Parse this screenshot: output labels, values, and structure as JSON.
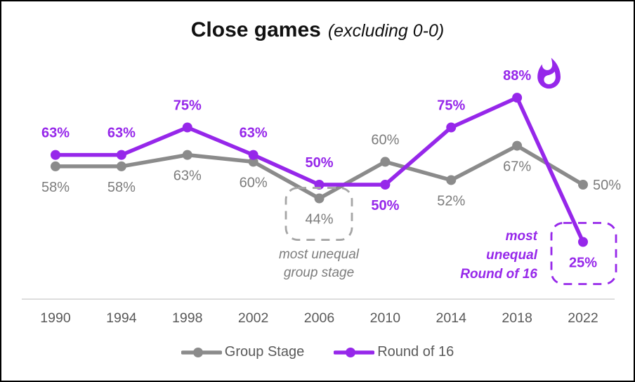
{
  "title": {
    "main": "Close games",
    "sub": "(excluding 0-0)"
  },
  "colors": {
    "purple": "#9627EA",
    "gray_line": "#8B8B8B",
    "gray_label": "#7C7C7C",
    "axis_text": "#595959",
    "axis_line": "#D2D2D2",
    "gray_dash": "#A6A6A6",
    "background": "#FFFFFF",
    "border": "#000000"
  },
  "chart_data": {
    "type": "line",
    "title": "Close games (excluding 0-0)",
    "categories": [
      "1990",
      "1994",
      "1998",
      "2002",
      "2006",
      "2010",
      "2014",
      "2018",
      "2022"
    ],
    "unit": "%",
    "ylim": [
      20,
      95
    ],
    "grid": false,
    "legend_position": "bottom",
    "series": [
      {
        "name": "Group Stage",
        "color_key": "gray_line",
        "label_color_key": "gray_label",
        "label_bold": false,
        "values": [
          58,
          58,
          63,
          60,
          44,
          60,
          52,
          67,
          50
        ],
        "label_placement": [
          "below",
          "below",
          "below",
          "below",
          "below",
          "above",
          "below",
          "below",
          "right"
        ]
      },
      {
        "name": "Round of 16",
        "color_key": "purple",
        "label_color_key": "purple",
        "label_bold": true,
        "values": [
          63,
          63,
          75,
          63,
          50,
          50,
          75,
          88,
          25
        ],
        "label_placement": [
          "above",
          "above",
          "above",
          "above",
          "above",
          "below",
          "above",
          "above",
          "below"
        ]
      }
    ],
    "annotations": [
      {
        "id": "group-note",
        "lines": [
          "most unequal",
          "group stage"
        ],
        "color_key": "gray_label",
        "align": "center",
        "bold": false
      },
      {
        "id": "round16-note",
        "lines": [
          "most",
          "unequal",
          "Round of 16"
        ],
        "color_key": "purple",
        "align": "right",
        "bold": true
      }
    ],
    "highlight_boxes": [
      {
        "id": "group-box",
        "series": 0,
        "category_index": 4,
        "color_key": "gray_dash"
      },
      {
        "id": "round16-box",
        "series": 1,
        "category_index": 8,
        "color_key": "purple"
      }
    ],
    "fire_icon": {
      "series": 1,
      "category_index": 7,
      "name": "fire-icon"
    }
  },
  "legend": {
    "items": [
      {
        "label": "Group Stage",
        "color_key": "gray_line"
      },
      {
        "label": "Round of 16",
        "color_key": "purple"
      }
    ]
  }
}
